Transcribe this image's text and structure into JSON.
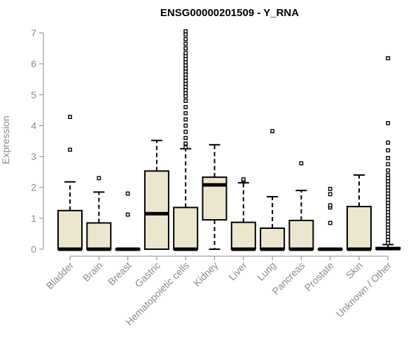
{
  "chart_data": {
    "type": "box",
    "title": "ENSG00000201509 - Y_RNA",
    "ylabel": "Expression",
    "ylim": [
      0,
      7
    ],
    "yticks": [
      0,
      1,
      2,
      3,
      4,
      5,
      6,
      7
    ],
    "box_fill": "#ede6cf",
    "outline_color": "#000000",
    "axis_color": "#8a8a8a",
    "categories": [
      "Bladder",
      "Brain",
      "Breast",
      "Gastric",
      "Hematopoietic cells",
      "Kidney",
      "Liver",
      "Lung",
      "Pancreas",
      "Prostate",
      "Skin",
      "Unknown / Other"
    ],
    "boxes": [
      {
        "q1": 0,
        "median": 0,
        "q3": 1.25,
        "whisker_low": 0,
        "whisker_high": 2.18,
        "outliers": [
          3.22,
          4.28
        ]
      },
      {
        "q1": 0,
        "median": 0,
        "q3": 0.85,
        "whisker_low": 0,
        "whisker_high": 1.85,
        "outliers": [
          2.3
        ]
      },
      {
        "q1": 0,
        "median": 0,
        "q3": 0,
        "whisker_low": 0,
        "whisker_high": 0,
        "outliers": [
          1.12,
          1.8
        ]
      },
      {
        "q1": 0,
        "median": 1.15,
        "q3": 2.53,
        "whisker_low": 0,
        "whisker_high": 3.52,
        "outliers": []
      },
      {
        "q1": 0,
        "median": 0,
        "q3": 1.35,
        "whisker_low": 0,
        "whisker_high": 3.25,
        "outliers": [
          3.3,
          3.42,
          3.6,
          3.8,
          4.0,
          4.2,
          4.4,
          4.6,
          4.8,
          4.95,
          5.05,
          5.15,
          5.25,
          5.35,
          5.45,
          5.55,
          5.65,
          5.75,
          5.85,
          5.95,
          6.05,
          6.15,
          6.25,
          6.35,
          6.5,
          6.65,
          6.8,
          6.95,
          7.05
        ]
      },
      {
        "q1": 0.95,
        "median": 2.08,
        "q3": 2.33,
        "whisker_low": 0,
        "whisker_high": 3.38,
        "outliers": []
      },
      {
        "q1": 0,
        "median": 0,
        "q3": 0.87,
        "whisker_low": 0,
        "whisker_high": 2.15,
        "outliers": [
          2.22,
          2.26
        ]
      },
      {
        "q1": 0,
        "median": 0,
        "q3": 0.68,
        "whisker_low": 0,
        "whisker_high": 1.7,
        "outliers": [
          3.82
        ]
      },
      {
        "q1": 0,
        "median": 0,
        "q3": 0.93,
        "whisker_low": 0,
        "whisker_high": 1.9,
        "outliers": [
          2.78
        ]
      },
      {
        "q1": 0,
        "median": 0,
        "q3": 0,
        "whisker_low": 0,
        "whisker_high": 0,
        "outliers": [
          0.85,
          1.35,
          1.42,
          1.78,
          1.95
        ]
      },
      {
        "q1": 0,
        "median": 0,
        "q3": 1.38,
        "whisker_low": 0,
        "whisker_high": 2.4,
        "outliers": []
      },
      {
        "q1": 0,
        "median": 0.02,
        "q3": 0.05,
        "whisker_low": 0,
        "whisker_high": 0.15,
        "outliers": [
          0.2,
          0.3,
          0.4,
          0.5,
          0.6,
          0.7,
          0.8,
          0.9,
          1.0,
          1.1,
          1.2,
          1.3,
          1.4,
          1.5,
          1.6,
          1.7,
          1.8,
          1.9,
          2.0,
          2.1,
          2.2,
          2.3,
          2.4,
          2.55,
          2.75,
          2.95,
          3.2,
          3.45,
          4.08,
          6.18
        ]
      }
    ]
  }
}
